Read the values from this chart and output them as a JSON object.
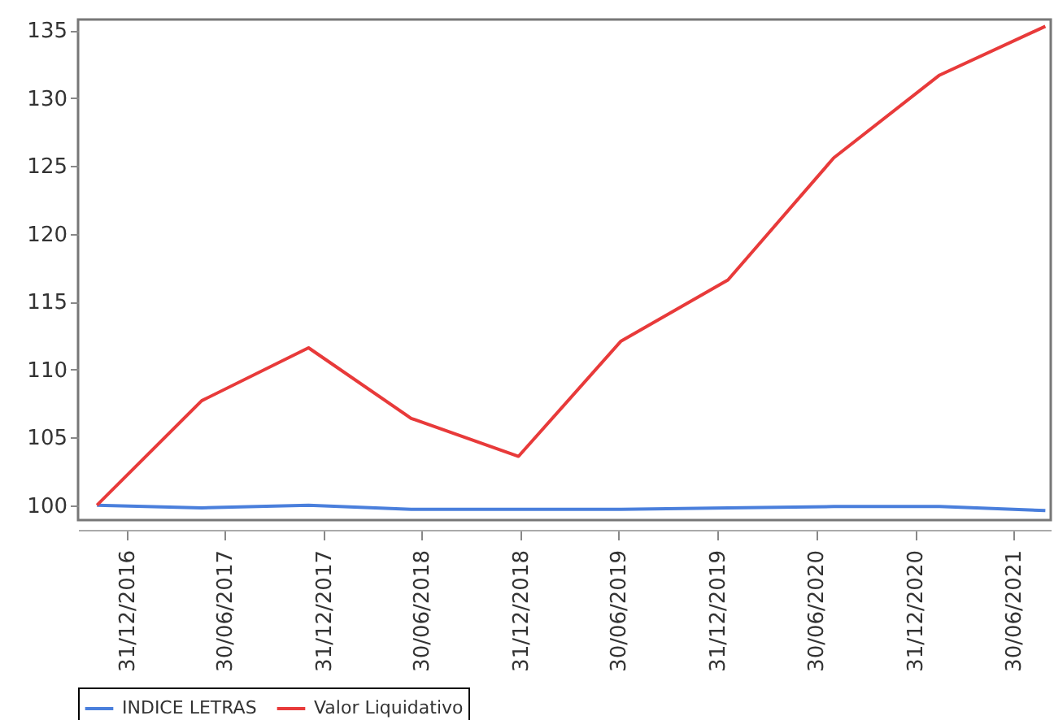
{
  "chart_data": {
    "type": "line",
    "x": [
      "2016-11-06",
      "2017-05-19",
      "2017-12-03",
      "2018-06-11",
      "2018-12-27",
      "2019-07-05",
      "2020-01-19",
      "2020-08-02",
      "2021-02-14",
      "2021-08-29"
    ],
    "series": [
      {
        "name": "INDICE LETRAS",
        "color": "#4a7fdc",
        "values": [
          100,
          99.8,
          100,
          99.7,
          99.7,
          99.7,
          99.8,
          99.9,
          99.9,
          99.6
        ]
      },
      {
        "name": "Valor Liquidativo",
        "color": "#e83a3a",
        "values": [
          100,
          107.7,
          111.6,
          106.4,
          103.6,
          112.1,
          116.6,
          125.6,
          131.7,
          135.3
        ]
      }
    ],
    "xlim": [
      "2016-10-02",
      "2021-09-08"
    ],
    "xticks": [
      {
        "value": "2016-12-31",
        "label": "31/12/2016"
      },
      {
        "value": "2017-06-30",
        "label": "30/06/2017"
      },
      {
        "value": "2017-12-31",
        "label": "31/12/2017"
      },
      {
        "value": "2018-06-30",
        "label": "30/06/2018"
      },
      {
        "value": "2018-12-31",
        "label": "31/12/2018"
      },
      {
        "value": "2019-06-30",
        "label": "30/06/2019"
      },
      {
        "value": "2019-12-31",
        "label": "31/12/2019"
      },
      {
        "value": "2020-06-30",
        "label": "30/06/2020"
      },
      {
        "value": "2020-12-31",
        "label": "31/12/2020"
      },
      {
        "value": "2021-06-30",
        "label": "30/06/2021"
      }
    ],
    "ylim": [
      98.9,
      135.8
    ],
    "yticks": [
      100,
      105,
      110,
      115,
      120,
      125,
      130,
      135
    ],
    "grid": false,
    "legend": "bottom",
    "marker": "none",
    "line_style": "solid"
  }
}
